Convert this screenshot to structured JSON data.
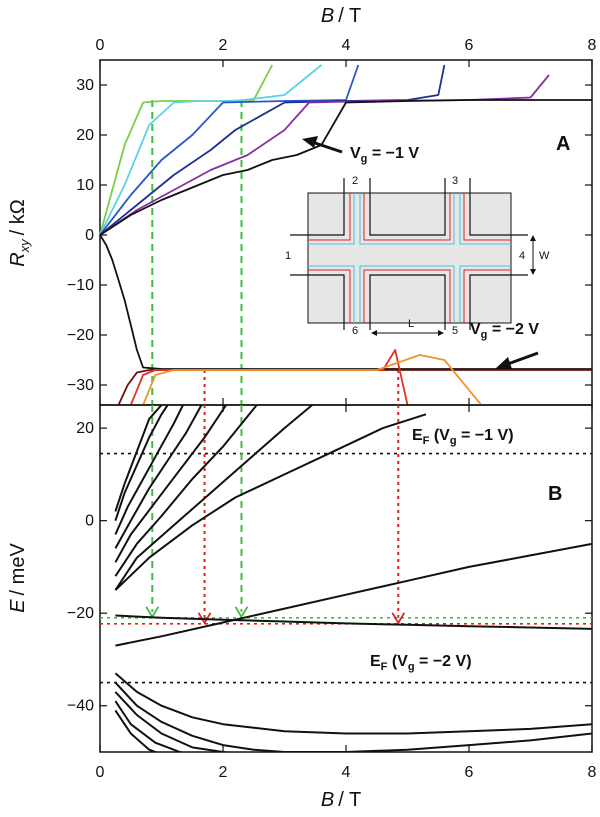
{
  "chart_data": [
    {
      "panel": "A",
      "type": "line",
      "xlabel_var": "B",
      "xlabel_unit": "/ T",
      "ylabel_var": "R",
      "ylabel_sub": "xy",
      "ylabel_unit": "/ kΩ",
      "xlim": [
        0,
        8
      ],
      "ylim": [
        -34,
        35
      ],
      "xticks": [
        0,
        2,
        4,
        6,
        8
      ],
      "yticks": [
        -30,
        -20,
        -10,
        0,
        10,
        20,
        30
      ],
      "annotations": [
        {
          "id": "vg_minus1",
          "text": "V",
          "sub": "g",
          "rest": " = −1 V"
        },
        {
          "id": "vg_minus2",
          "text": "V",
          "sub": "g",
          "rest": " = −2 V"
        }
      ],
      "series": [
        {
          "color": "#7ccd4a",
          "x": [
            0,
            0.4,
            0.7,
            1.0,
            1.5,
            2.0,
            2.5,
            2.8
          ],
          "y": [
            0,
            18,
            26.5,
            26.8,
            26.8,
            26.8,
            27,
            34
          ]
        },
        {
          "color": "#5ad2e6",
          "x": [
            0,
            0.4,
            0.8,
            1.2,
            1.6,
            2.2,
            3.0,
            3.6
          ],
          "y": [
            0,
            10,
            22,
            26.5,
            26.8,
            26.8,
            28,
            34
          ]
        },
        {
          "color": "#2a56c8",
          "x": [
            0,
            0.5,
            1.0,
            1.5,
            2.0,
            3.0,
            4.0,
            4.2
          ],
          "y": [
            0,
            8,
            15,
            20,
            26.5,
            26.8,
            27,
            34
          ]
        },
        {
          "color": "#1f2f8e",
          "x": [
            0,
            0.6,
            1.2,
            1.8,
            2.2,
            3.0,
            4.0,
            5.0,
            5.5,
            5.6
          ],
          "y": [
            0,
            6,
            12,
            17,
            21,
            26.5,
            26.8,
            27,
            28,
            34
          ]
        },
        {
          "color": "#8b2ea0",
          "x": [
            0,
            0.6,
            1.2,
            1.8,
            2.4,
            3.0,
            3.4,
            4.5,
            6.0,
            7.0,
            7.3
          ],
          "y": [
            0,
            5,
            9,
            13,
            16,
            21,
            26.5,
            26.8,
            27,
            27.5,
            32
          ]
        },
        {
          "color": "#111111",
          "x": [
            0,
            0.5,
            1.0,
            1.5,
            2.0,
            2.4,
            2.8,
            3.2,
            3.6,
            4.0,
            5.0,
            6.0,
            7.0,
            8.0
          ],
          "y": [
            0,
            4,
            7,
            9.5,
            12,
            13,
            15,
            16,
            18,
            26.5,
            26.8,
            27,
            27,
            27
          ]
        },
        {
          "color": "#111111",
          "x": [
            0,
            0.1,
            0.2,
            0.3,
            0.4,
            0.5,
            0.6,
            0.7,
            1.0,
            2.0,
            3.0,
            4.0,
            5.0,
            6.0,
            7.0,
            8.0
          ],
          "y": [
            0,
            -2,
            -5,
            -9,
            -13,
            -18,
            -23,
            -26.5,
            -26.8,
            -26.8,
            -26.8,
            -26.8,
            -26.8,
            -26.8,
            -26.8,
            -26.8
          ]
        },
        {
          "color": "#6e1010",
          "x": [
            0.3,
            0.45,
            0.6,
            0.8,
            2.0,
            4.0,
            6.0,
            8.0
          ],
          "y": [
            -34,
            -30,
            -27.5,
            -27,
            -27,
            -27,
            -27,
            -27
          ]
        },
        {
          "color": "#e83020",
          "x": [
            0.5,
            0.7,
            0.9,
            2.0,
            3.5,
            4.6,
            4.8,
            5.0
          ],
          "y": [
            -34,
            -28,
            -27,
            -27,
            -27,
            -27,
            -23,
            -34
          ]
        },
        {
          "color": "#f0942a",
          "x": [
            0.7,
            0.9,
            1.2,
            2.5,
            4.5,
            5.2,
            5.6,
            6.2
          ],
          "y": [
            -34,
            -28,
            -27,
            -27,
            -27,
            -24,
            -25,
            -34
          ]
        }
      ],
      "inset": {
        "contacts": [
          "1",
          "2",
          "3",
          "4",
          "5",
          "6"
        ],
        "labels": {
          "width": "W",
          "length": "L"
        }
      },
      "guides": [
        {
          "color": "#3fbf3f",
          "x": 0.85
        },
        {
          "color": "#3fbf3f",
          "x": 2.3
        },
        {
          "color": "#e02020",
          "x": 1.7
        },
        {
          "color": "#e02020",
          "x": 4.85
        }
      ]
    },
    {
      "panel": "B",
      "type": "line",
      "xlabel_var": "B",
      "xlabel_unit": "/ T",
      "ylabel_var": "E",
      "ylabel_unit": "/ meV",
      "xlim": [
        0,
        8
      ],
      "ylim": [
        -50,
        25
      ],
      "xticks": [
        0,
        2,
        4,
        6,
        8
      ],
      "yticks": [
        -40,
        -20,
        0,
        20
      ],
      "fermi_levels": [
        {
          "E": 14.5,
          "label_main": "E",
          "label_sub": "F",
          "label_rest": " (V",
          "label_sub2": "g",
          "label_end": " = −1 V)"
        },
        {
          "E": -35,
          "label_main": "E",
          "label_sub": "F",
          "label_rest": " (V",
          "label_sub2": "g",
          "label_end": " = −2 V)"
        }
      ],
      "crossing_levels": [
        {
          "color": "#3fbf3f",
          "E": -21
        },
        {
          "color": "#e02020",
          "E": -22.3
        }
      ],
      "landau_levels_up": [
        {
          "x": [
            0.25,
            0.4,
            0.6,
            0.8,
            1.0
          ],
          "y": [
            2,
            8,
            15,
            22,
            25
          ]
        },
        {
          "x": [
            0.25,
            0.4,
            0.6,
            0.8,
            1.0,
            1.1
          ],
          "y": [
            0,
            6,
            12,
            18,
            23,
            25
          ]
        },
        {
          "x": [
            0.25,
            0.45,
            0.7,
            0.95,
            1.2,
            1.35
          ],
          "y": [
            -3,
            3,
            9,
            15,
            21,
            25
          ]
        },
        {
          "x": [
            0.25,
            0.5,
            0.8,
            1.1,
            1.4,
            1.65
          ],
          "y": [
            -6,
            0,
            7,
            13,
            19,
            25
          ]
        },
        {
          "x": [
            0.25,
            0.5,
            0.9,
            1.3,
            1.7,
            2.05
          ],
          "y": [
            -9,
            -3,
            4,
            11,
            18,
            25
          ]
        },
        {
          "x": [
            0.25,
            0.6,
            1.0,
            1.5,
            2.0,
            2.55
          ],
          "y": [
            -12,
            -5,
            1,
            9,
            16,
            25
          ]
        },
        {
          "x": [
            0.25,
            0.6,
            1.2,
            1.8,
            2.4,
            3.0,
            3.45
          ],
          "y": [
            -15,
            -8,
            -1,
            6,
            13,
            20,
            25
          ]
        },
        {
          "x": [
            0.25,
            0.8,
            1.5,
            2.2,
            3.0,
            3.8,
            4.6,
            5.3
          ],
          "y": [
            -15,
            -8,
            -1,
            5,
            10,
            15,
            20,
            23
          ]
        },
        {
          "x": [
            0.25,
            1.0,
            2.0,
            3.0,
            4.0,
            5.0,
            6.0,
            7.0,
            8.0
          ],
          "y": [
            -27,
            -25,
            -22,
            -19,
            -16,
            -13,
            -10,
            -7.5,
            -5
          ]
        },
        {
          "x": [
            0.25,
            1.0,
            2.0,
            3.0,
            4.0,
            5.0,
            6.0,
            7.0,
            8.0
          ],
          "y": [
            -20.5,
            -21,
            -21.4,
            -21.8,
            -22.2,
            -22.5,
            -22.8,
            -23.1,
            -23.4
          ]
        }
      ],
      "landau_levels_down": [
        {
          "x": [
            0.25,
            0.6,
            1.0,
            1.5,
            2.0,
            3.0,
            4.0,
            5.0,
            6.0,
            7.0,
            8.0
          ],
          "y": [
            -33,
            -37,
            -40,
            -42.5,
            -44,
            -45.5,
            -46,
            -46,
            -45.5,
            -45,
            -44
          ]
        },
        {
          "x": [
            0.25,
            0.6,
            1.0,
            1.5,
            2.0,
            2.5,
            3.0,
            4.0,
            5.0,
            6.0,
            7.0,
            8.0
          ],
          "y": [
            -35,
            -40,
            -43.5,
            -46.5,
            -48.5,
            -49.5,
            -50,
            -50,
            -49.5,
            -48.5,
            -47.5,
            -46
          ]
        },
        {
          "x": [
            0.25,
            0.6,
            1.0,
            1.5,
            2.0,
            2.5
          ],
          "y": [
            -37,
            -42,
            -46,
            -49,
            -50,
            -50.5
          ]
        },
        {
          "x": [
            0.25,
            0.5,
            0.9,
            1.3,
            1.7
          ],
          "y": [
            -39,
            -44,
            -48,
            -50,
            -51
          ]
        },
        {
          "x": [
            0.25,
            0.5,
            0.8,
            1.1
          ],
          "y": [
            -41,
            -46,
            -49.5,
            -51
          ]
        }
      ]
    }
  ],
  "colors": {
    "axis": "#111111",
    "green_guide": "#3fbf3f",
    "red_guide": "#e02020",
    "inset_fill": "#e6e6e6"
  }
}
